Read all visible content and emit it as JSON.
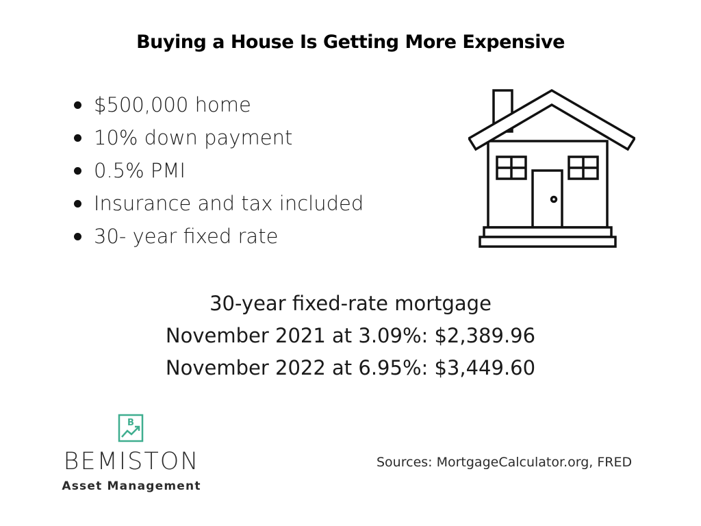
{
  "title": "Buying a House Is Getting More Expensive",
  "bullets": [
    "$500,000 home",
    "10% down payment",
    "0.5% PMI",
    "Insurance and tax included",
    "30- year fixed rate"
  ],
  "mortgage": {
    "heading": "30-year fixed-rate mortgage",
    "line_2021": "November 2021 at 3.09%: $2,389.96",
    "line_2022": "November 2022 at 6.95%: $3,449.60"
  },
  "logo": {
    "icon": "chart-box-icon",
    "name": "BEMISTON",
    "tagline": "Asset Management",
    "accent_color": "#3fae8f"
  },
  "sources": "Sources: MortgageCalculator.org, FRED",
  "house_icon": "house-icon"
}
